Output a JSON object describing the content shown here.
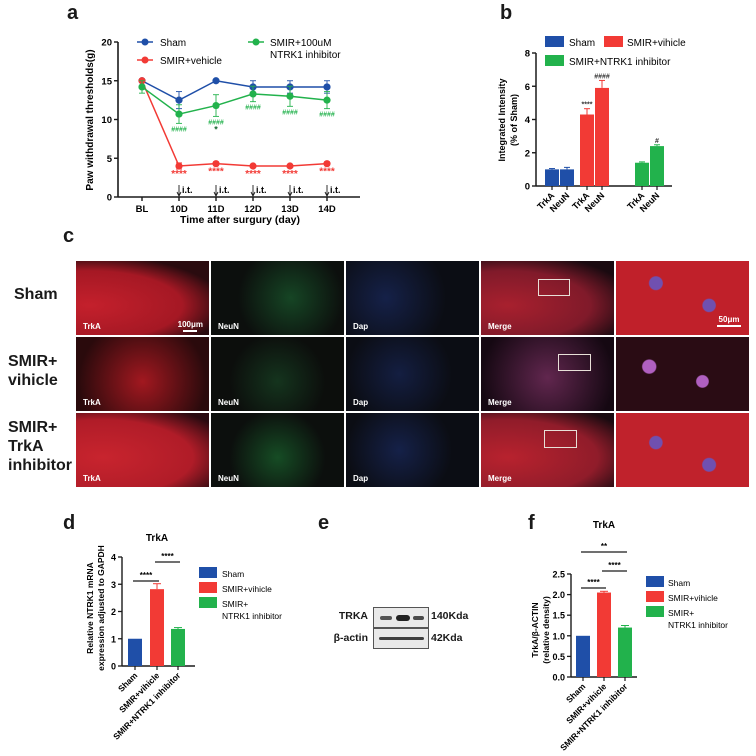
{
  "panels": {
    "a": {
      "letter": "a"
    },
    "b": {
      "letter": "b"
    },
    "c": {
      "letter": "c"
    },
    "d": {
      "letter": "d"
    },
    "e": {
      "letter": "e"
    },
    "f": {
      "letter": "f"
    }
  },
  "colors": {
    "sham": "#1f4fa8",
    "vehicle": "#f23a35",
    "inhibitor": "#22b24c",
    "axis": "#1a1a1a"
  },
  "chart_data": [
    {
      "id": "a",
      "type": "line",
      "title": "",
      "xlabel": "Time after surgury (day)",
      "ylabel": "Paw  withdrawal thresholds(g)",
      "categories": [
        "BL",
        "10D",
        "11D",
        "12D",
        "13D",
        "14D"
      ],
      "ylim": [
        0,
        20
      ],
      "yticks": [
        0,
        5,
        10,
        15,
        20
      ],
      "legend": [
        "Sham",
        "SMIR+vehicle",
        "SMIR+100uM NTRK1 inhibitor"
      ],
      "legend_lines": {
        "inhibitor_line1": "SMIR+100uM",
        "inhibitor_line2": "NTRK1 inhibitor"
      },
      "series": [
        {
          "name": "Sham",
          "values": [
            15.0,
            12.5,
            15.0,
            14.2,
            14.2,
            14.2
          ],
          "errors": [
            0,
            1.1,
            0,
            0.8,
            0.8,
            0.8
          ]
        },
        {
          "name": "SMIR+vehicle",
          "values": [
            15.0,
            4.0,
            4.3,
            4.0,
            4.0,
            4.3
          ],
          "errors": [
            0,
            0.4,
            0.2,
            0.2,
            0.2,
            0.2
          ],
          "annotations": [
            "",
            "****",
            "****",
            "****",
            "****",
            "****"
          ]
        },
        {
          "name": "SMIR+100uM NTRK1 inhibitor",
          "values": [
            14.2,
            10.7,
            11.8,
            13.3,
            13.0,
            12.5
          ],
          "errors": [
            0.8,
            1.2,
            1.4,
            1.0,
            1.3,
            1.1
          ],
          "annotations": [
            "",
            "####",
            "####",
            "####",
            "####",
            "####"
          ],
          "extra_annotations": [
            "",
            "",
            "*",
            "",
            "",
            ""
          ]
        }
      ],
      "arrow_labels": [
        "",
        "i.t.",
        "i.t.",
        "i.t.",
        "i.t.",
        "i.t."
      ],
      "grid": false
    },
    {
      "id": "b",
      "type": "bar",
      "title": "",
      "ylabel": "Integrated Intensity (% of Sham)",
      "ylabel_line1": "Integrated Intensity",
      "ylabel_line2": "(% of Sham)",
      "categories": [
        "TrkA",
        "NeuN",
        "TrkA",
        "NeuN",
        "TrkA",
        "NeuN"
      ],
      "ylim": [
        0,
        8
      ],
      "yticks": [
        0,
        2,
        4,
        6,
        8
      ],
      "legend": [
        "Sham",
        "SMIR+vihicle",
        "SMIR+NTRK1 inhibitor"
      ],
      "series": [
        {
          "name": "Sham",
          "values": {
            "TrkA": 1.0,
            "NeuN": 1.0
          },
          "errors": {
            "TrkA": 0.05,
            "NeuN": 0.12
          }
        },
        {
          "name": "SMIR+vihicle",
          "values": {
            "TrkA": 4.3,
            "NeuN": 5.9
          },
          "errors": {
            "TrkA": 0.35,
            "NeuN": 0.45
          },
          "annotations": {
            "TrkA": "****",
            "NeuN": "####"
          }
        },
        {
          "name": "SMIR+NTRK1 inhibitor",
          "values": {
            "TrkA": 1.4,
            "NeuN": 2.4
          },
          "errors": {
            "TrkA": 0.05,
            "NeuN": 0.08
          },
          "annotations": {
            "TrkA": "",
            "NeuN": "#"
          }
        }
      ],
      "grid": false
    },
    {
      "id": "d",
      "type": "bar",
      "title": "TrkA",
      "ylabel": "Relative NTRK1 mRNA expression adjusted to GAPDH",
      "ylabel_line1": "Relative NTRK1 mRNA",
      "ylabel_line2": "expression adjusted to GAPDH",
      "categories": [
        "Sham",
        "SMIR+vihicle",
        "SMIR+NTRK1 inhibitor"
      ],
      "values": [
        1.0,
        2.82,
        1.36
      ],
      "errors": [
        0,
        0.2,
        0.05
      ],
      "ylim": [
        0,
        4
      ],
      "yticks": [
        0,
        1,
        2,
        3,
        4
      ],
      "legend": [
        "Sham",
        "SMIR+vihicle",
        "SMIR+",
        "NTRK1 inhibitor"
      ],
      "significance": [
        {
          "from": 0,
          "to": 1,
          "label": "****"
        },
        {
          "from": 1,
          "to": 2,
          "label": "****"
        }
      ],
      "grid": false
    },
    {
      "id": "f",
      "type": "bar",
      "title": "TrkA",
      "ylabel": "TrkA/β-ACTIN (relative density)",
      "ylabel_line1": "TrkA/β-ACTIN",
      "ylabel_line2": "(relative density)",
      "categories": [
        "Sham",
        "SMIR+vihicle",
        "SMIR+NTRK1 inhibitor"
      ],
      "values": [
        1.0,
        2.05,
        1.2
      ],
      "errors": [
        0,
        0.03,
        0.05
      ],
      "ylim": [
        0,
        2.5
      ],
      "yticks": [
        "0.0",
        "0.5",
        "1.0",
        "1.5",
        "2.0",
        "2.5"
      ],
      "legend": [
        "Sham",
        "SMIR+vihicle",
        "SMIR+",
        "NTRK1 inhibitor"
      ],
      "significance": [
        {
          "from": 0,
          "to": 1,
          "label": "****"
        },
        {
          "from": 1,
          "to": 2,
          "label": "****"
        },
        {
          "from": 0,
          "to": 2,
          "label": "**"
        }
      ],
      "grid": false
    }
  ],
  "panel_c": {
    "rows": [
      {
        "label_lines": [
          "Sham"
        ]
      },
      {
        "label_lines": [
          "SMIR+",
          "vihicle"
        ]
      },
      {
        "label_lines": [
          "SMIR+",
          "TrkA",
          "inhibitor"
        ]
      }
    ],
    "channels": [
      "TrkA",
      "NeuN",
      "Dapi",
      "Merge",
      ""
    ],
    "scale_bar_low": "100μm",
    "scale_bar_high": "50μm"
  },
  "panel_e": {
    "rows": [
      {
        "label": "TRKA",
        "size": "140Kda"
      },
      {
        "label": "β-actin",
        "size": "42Kda"
      }
    ]
  }
}
